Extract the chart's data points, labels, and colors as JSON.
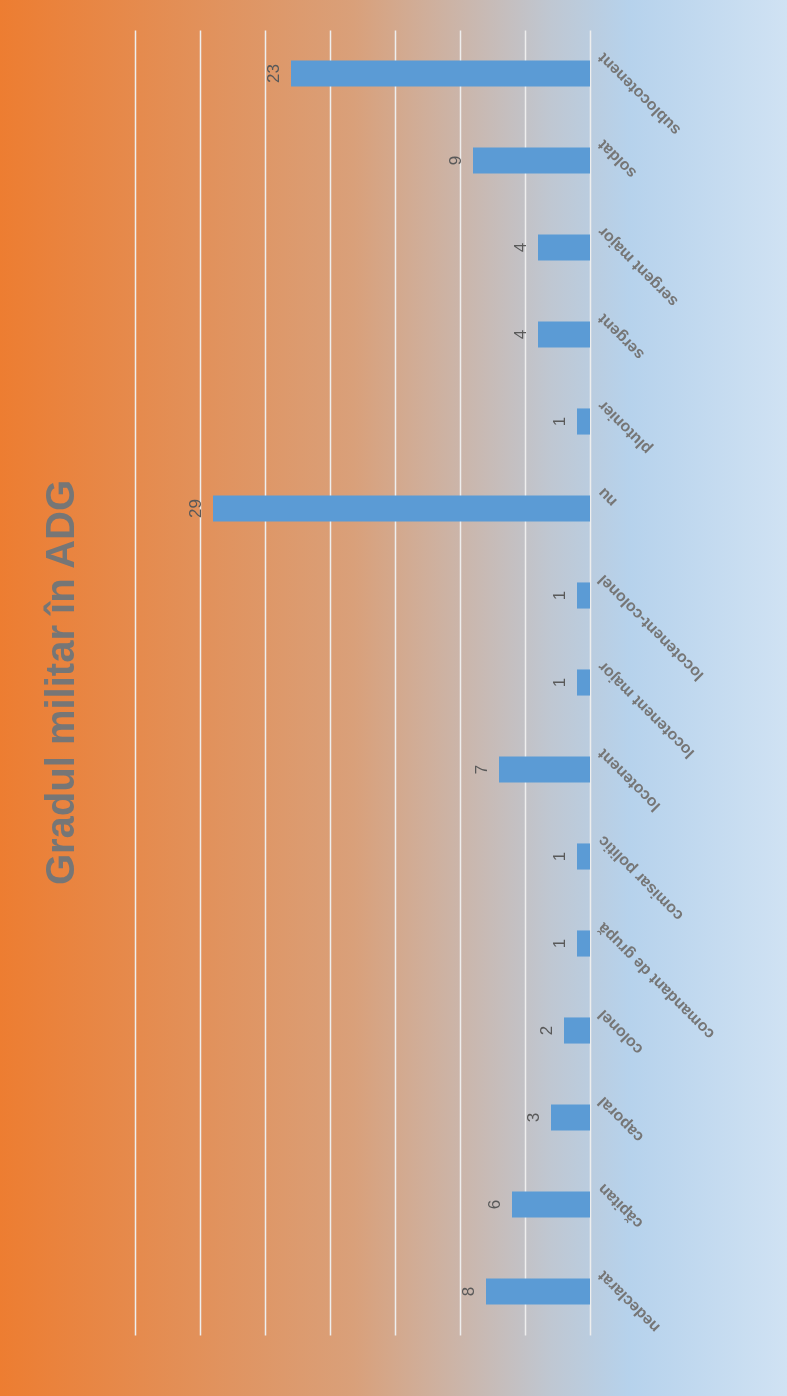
{
  "chart_data": {
    "type": "bar",
    "orientation": "horizontal",
    "title": "Gradul militar în ADG",
    "categories": [
      "sublocotenent",
      "soldat",
      "sergent major",
      "sergent",
      "plutonier",
      "nu",
      "locotenent-colonel",
      "locotenent major",
      "locotenent",
      "comisar politic",
      "comandant de grupă",
      "colonel",
      "caporal",
      "căpitan",
      "nedeclarat"
    ],
    "values": [
      23,
      9,
      4,
      4,
      1,
      29,
      1,
      1,
      7,
      1,
      1,
      2,
      3,
      6,
      8
    ],
    "color": "#5b9bd5",
    "xlim": [
      35,
      0
    ],
    "xticks": [
      {
        "value": 0,
        "label": null
      },
      {
        "value": 5,
        "label": null
      },
      {
        "value": 10,
        "label": null
      },
      {
        "value": 15,
        "label": null
      },
      {
        "value": 20,
        "label": null
      },
      {
        "value": 25,
        "label": null
      },
      {
        "value": 30,
        "label": null
      },
      {
        "value": 35,
        "label": null
      }
    ],
    "grid": "x",
    "tick_labels": "y",
    "data_labels": true
  }
}
